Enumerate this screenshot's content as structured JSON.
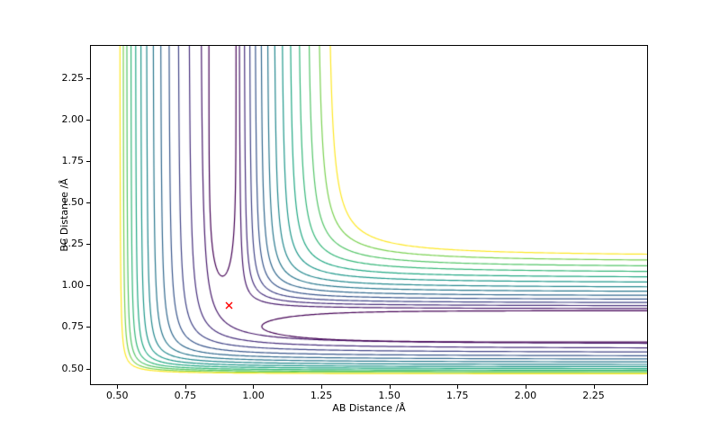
{
  "figure": {
    "background": "#ffffff"
  },
  "axes": {
    "xlabel": "AB Distance /Å",
    "ylabel": "BC Distance /Å",
    "xticks": [
      "0.50",
      "0.75",
      "1.00",
      "1.25",
      "1.50",
      "1.75",
      "2.00",
      "2.25"
    ],
    "yticks": [
      "0.50",
      "0.75",
      "1.00",
      "1.25",
      "1.50",
      "1.75",
      "2.00",
      "2.25"
    ]
  },
  "chart_data": {
    "type": "contour",
    "title": "",
    "xlabel": "AB Distance /Å",
    "ylabel": "BC Distance /Å",
    "xlim": [
      0.4,
      2.45
    ],
    "ylim": [
      0.4,
      2.45
    ],
    "grid": false,
    "colormap": "viridis",
    "n_levels": 14,
    "colors": [
      "#440154",
      "#481a6c",
      "#472f7d",
      "#414487",
      "#39568c",
      "#31688e",
      "#2a788e",
      "#23888e",
      "#1f988b",
      "#22a884",
      "#35b779",
      "#54c568",
      "#7ad151",
      "#fde725"
    ],
    "marker": {
      "x": 0.91,
      "y": 0.91,
      "symbol": "x",
      "color": "#ff0000"
    },
    "valleys": {
      "vertical_valley_x": 0.885,
      "horizontal_valley_y": 0.75
    },
    "sub_saddle": {
      "color_index": 0,
      "vertical_u": {
        "center_x": 0.885,
        "arm_left_x": 0.835,
        "arm_right_x": 0.935,
        "dip_y": 1.055,
        "tau": 0.22
      },
      "horizontal_u": {
        "center_y": 0.75,
        "arm_top_y": 0.845,
        "arm_bottom_y": 0.655,
        "vertex_x": 1.03,
        "tau": 0.22
      }
    },
    "levels": [
      {
        "ci": 1,
        "outer": {
          "a": 0.8,
          "b": 0.64,
          "c": 0.013
        },
        "inner": {
          "p": 0.945,
          "q": 0.856,
          "c": 0.004
        }
      },
      {
        "ci": 2,
        "outer": {
          "a": 0.757,
          "b": 0.614,
          "c": 0.011
        },
        "inner": {
          "p": 0.963,
          "q": 0.873,
          "c": 0.005
        }
      },
      {
        "ci": 3,
        "outer": {
          "a": 0.718,
          "b": 0.59,
          "c": 0.0095
        },
        "inner": {
          "p": 0.982,
          "q": 0.891,
          "c": 0.006
        }
      },
      {
        "ci": 4,
        "outer": {
          "a": 0.684,
          "b": 0.568,
          "c": 0.0082
        },
        "inner": {
          "p": 1.002,
          "q": 0.911,
          "c": 0.007
        }
      },
      {
        "ci": 5,
        "outer": {
          "a": 0.654,
          "b": 0.549,
          "c": 0.0071
        },
        "inner": {
          "p": 1.023,
          "q": 0.933,
          "c": 0.008
        }
      },
      {
        "ci": 6,
        "outer": {
          "a": 0.627,
          "b": 0.532,
          "c": 0.0062
        },
        "inner": {
          "p": 1.046,
          "q": 0.957,
          "c": 0.009
        }
      },
      {
        "ci": 7,
        "outer": {
          "a": 0.603,
          "b": 0.517,
          "c": 0.0054
        },
        "inner": {
          "p": 1.071,
          "q": 0.983,
          "c": 0.01
        }
      },
      {
        "ci": 8,
        "outer": {
          "a": 0.582,
          "b": 0.504,
          "c": 0.0047
        },
        "inner": {
          "p": 1.098,
          "q": 1.011,
          "c": 0.0115
        }
      },
      {
        "ci": 9,
        "outer": {
          "a": 0.563,
          "b": 0.493,
          "c": 0.0041
        },
        "inner": {
          "p": 1.127,
          "q": 1.041,
          "c": 0.013
        }
      },
      {
        "ci": 10,
        "outer": {
          "a": 0.546,
          "b": 0.483,
          "c": 0.0036
        },
        "inner": {
          "p": 1.158,
          "q": 1.072,
          "c": 0.015
        }
      },
      {
        "ci": 11,
        "outer": {
          "a": 0.531,
          "b": 0.475,
          "c": 0.0032
        },
        "inner": {
          "p": 1.192,
          "q": 1.104,
          "c": 0.017
        }
      },
      {
        "ci": 12,
        "outer": {
          "a": 0.518,
          "b": 0.468,
          "c": 0.0028
        },
        "inner": {
          "p": 1.228,
          "q": 1.137,
          "c": 0.019
        }
      },
      {
        "ci": 13,
        "outer": {
          "a": 0.506,
          "b": 0.462,
          "c": 0.0025
        },
        "inner": {
          "p": 1.266,
          "q": 1.17,
          "c": 0.021
        }
      }
    ]
  }
}
